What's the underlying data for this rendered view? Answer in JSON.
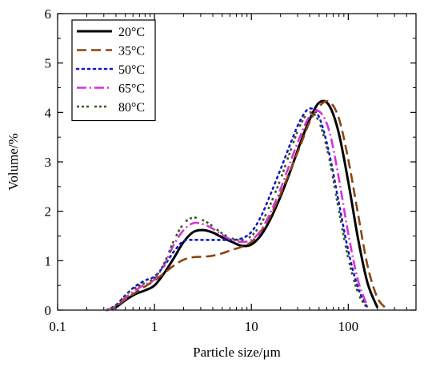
{
  "chart_data": {
    "type": "line",
    "xlabel": "Particle size/μm",
    "ylabel": "Volume/%",
    "xscale": "log",
    "xlim": [
      0.1,
      500
    ],
    "ylim": [
      0,
      6
    ],
    "x_ticks": [
      0.1,
      1,
      10,
      100
    ],
    "x_tick_labels": [
      "0.1",
      "1",
      "10",
      "100"
    ],
    "y_ticks": [
      0,
      1,
      2,
      3,
      4,
      5,
      6
    ],
    "y_tick_labels": [
      "0",
      "1",
      "2",
      "3",
      "4",
      "5",
      "6"
    ],
    "grid": false,
    "legend_position": "top-left",
    "series": [
      {
        "name": "20°C",
        "color": "#000000",
        "dash": "solid",
        "points": [
          [
            0.32,
            0.0
          ],
          [
            0.4,
            0.06
          ],
          [
            0.5,
            0.2
          ],
          [
            0.63,
            0.32
          ],
          [
            0.8,
            0.4
          ],
          [
            1.0,
            0.5
          ],
          [
            1.26,
            0.75
          ],
          [
            1.58,
            1.05
          ],
          [
            2.0,
            1.38
          ],
          [
            2.51,
            1.58
          ],
          [
            3.16,
            1.62
          ],
          [
            3.98,
            1.57
          ],
          [
            5.01,
            1.47
          ],
          [
            6.31,
            1.38
          ],
          [
            7.94,
            1.3
          ],
          [
            10.0,
            1.33
          ],
          [
            12.6,
            1.52
          ],
          [
            15.8,
            1.85
          ],
          [
            20.0,
            2.3
          ],
          [
            25.1,
            2.8
          ],
          [
            31.6,
            3.35
          ],
          [
            39.8,
            3.85
          ],
          [
            50.1,
            4.2
          ],
          [
            63.1,
            4.15
          ],
          [
            79.4,
            3.6
          ],
          [
            100,
            2.6
          ],
          [
            126,
            1.45
          ],
          [
            158,
            0.55
          ],
          [
            200,
            0.05
          ]
        ]
      },
      {
        "name": "35°C",
        "color": "#8B4513",
        "dash": "dash",
        "points": [
          [
            0.32,
            0.0
          ],
          [
            0.4,
            0.07
          ],
          [
            0.5,
            0.22
          ],
          [
            0.63,
            0.35
          ],
          [
            0.8,
            0.48
          ],
          [
            1.0,
            0.6
          ],
          [
            1.26,
            0.75
          ],
          [
            1.58,
            0.9
          ],
          [
            2.0,
            1.02
          ],
          [
            2.51,
            1.07
          ],
          [
            3.16,
            1.08
          ],
          [
            3.98,
            1.1
          ],
          [
            5.01,
            1.15
          ],
          [
            6.31,
            1.22
          ],
          [
            7.94,
            1.28
          ],
          [
            10.0,
            1.38
          ],
          [
            12.6,
            1.6
          ],
          [
            15.8,
            1.92
          ],
          [
            20.0,
            2.35
          ],
          [
            25.1,
            2.82
          ],
          [
            31.6,
            3.3
          ],
          [
            39.8,
            3.8
          ],
          [
            50.1,
            4.12
          ],
          [
            63.1,
            4.22
          ],
          [
            79.4,
            3.9
          ],
          [
            100,
            3.05
          ],
          [
            126,
            1.95
          ],
          [
            158,
            0.9
          ],
          [
            200,
            0.25
          ],
          [
            251,
            0.02
          ]
        ]
      },
      {
        "name": "50°C",
        "color": "#1515cc",
        "dash": "dot",
        "points": [
          [
            0.32,
            0.0
          ],
          [
            0.4,
            0.1
          ],
          [
            0.5,
            0.3
          ],
          [
            0.63,
            0.48
          ],
          [
            0.8,
            0.6
          ],
          [
            1.0,
            0.68
          ],
          [
            1.26,
            0.9
          ],
          [
            1.58,
            1.18
          ],
          [
            2.0,
            1.4
          ],
          [
            2.51,
            1.42
          ],
          [
            3.16,
            1.42
          ],
          [
            3.98,
            1.42
          ],
          [
            5.01,
            1.42
          ],
          [
            6.31,
            1.42
          ],
          [
            7.94,
            1.45
          ],
          [
            10.0,
            1.58
          ],
          [
            12.6,
            1.9
          ],
          [
            15.8,
            2.35
          ],
          [
            20.0,
            2.85
          ],
          [
            25.1,
            3.35
          ],
          [
            31.6,
            3.82
          ],
          [
            39.8,
            4.08
          ],
          [
            50.1,
            3.9
          ],
          [
            63.1,
            3.2
          ],
          [
            79.4,
            2.2
          ],
          [
            100,
            1.2
          ],
          [
            126,
            0.45
          ],
          [
            158,
            0.05
          ]
        ]
      },
      {
        "name": "65°C",
        "color": "#d633d6",
        "dash": "dashdot",
        "points": [
          [
            0.32,
            0.0
          ],
          [
            0.4,
            0.08
          ],
          [
            0.5,
            0.25
          ],
          [
            0.63,
            0.4
          ],
          [
            0.8,
            0.52
          ],
          [
            1.0,
            0.62
          ],
          [
            1.26,
            0.92
          ],
          [
            1.58,
            1.32
          ],
          [
            2.0,
            1.62
          ],
          [
            2.51,
            1.76
          ],
          [
            3.16,
            1.74
          ],
          [
            3.98,
            1.65
          ],
          [
            5.01,
            1.52
          ],
          [
            6.31,
            1.42
          ],
          [
            7.94,
            1.38
          ],
          [
            10.0,
            1.42
          ],
          [
            12.6,
            1.62
          ],
          [
            15.8,
            1.98
          ],
          [
            20.0,
            2.45
          ],
          [
            25.1,
            2.98
          ],
          [
            31.6,
            3.5
          ],
          [
            39.8,
            3.92
          ],
          [
            50.1,
            4.02
          ],
          [
            63.1,
            3.65
          ],
          [
            79.4,
            2.7
          ],
          [
            100,
            1.55
          ],
          [
            126,
            0.6
          ],
          [
            158,
            0.08
          ]
        ]
      },
      {
        "name": "80°C",
        "color": "#335e1c",
        "dash": "dashdotdot",
        "points": [
          [
            0.32,
            0.0
          ],
          [
            0.4,
            0.1
          ],
          [
            0.5,
            0.3
          ],
          [
            0.63,
            0.45
          ],
          [
            0.8,
            0.55
          ],
          [
            1.0,
            0.65
          ],
          [
            1.26,
            0.95
          ],
          [
            1.58,
            1.4
          ],
          [
            2.0,
            1.75
          ],
          [
            2.51,
            1.87
          ],
          [
            3.16,
            1.82
          ],
          [
            3.98,
            1.7
          ],
          [
            5.01,
            1.55
          ],
          [
            6.31,
            1.45
          ],
          [
            7.94,
            1.42
          ],
          [
            10.0,
            1.5
          ],
          [
            12.6,
            1.75
          ],
          [
            15.8,
            2.15
          ],
          [
            20.0,
            2.65
          ],
          [
            25.1,
            3.2
          ],
          [
            31.6,
            3.72
          ],
          [
            39.8,
            4.0
          ],
          [
            50.1,
            3.8
          ],
          [
            63.1,
            3.1
          ],
          [
            79.4,
            2.05
          ],
          [
            100,
            1.05
          ],
          [
            126,
            0.35
          ],
          [
            158,
            0.03
          ]
        ]
      }
    ]
  }
}
